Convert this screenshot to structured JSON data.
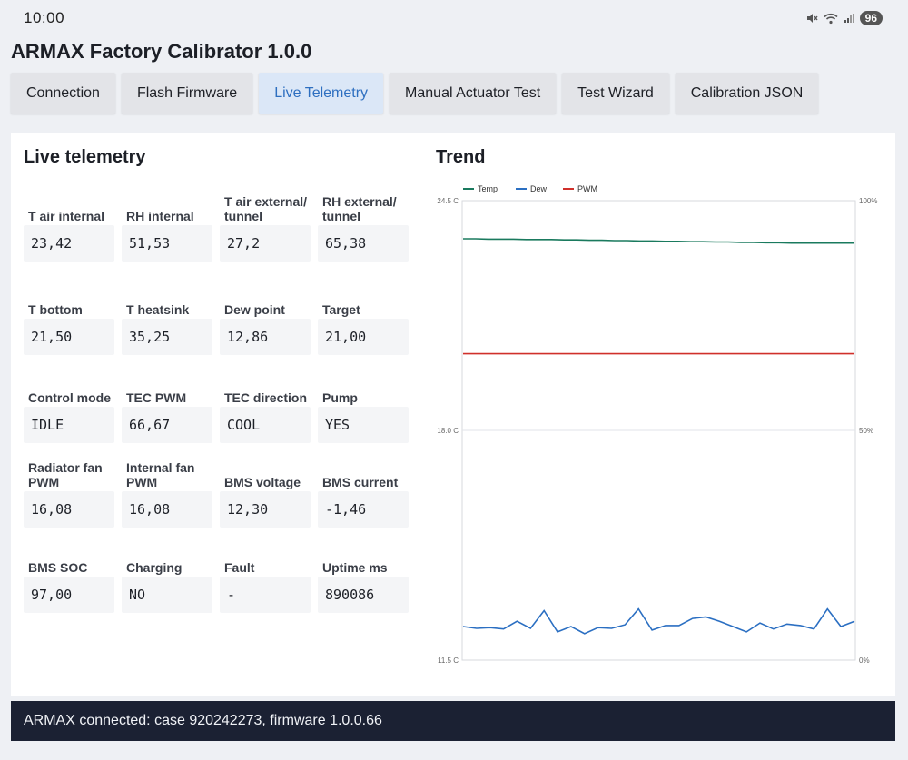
{
  "status_bar": {
    "time": "10:00",
    "battery": "96",
    "icons": [
      "mute-icon",
      "wifi-icon",
      "signal-icon",
      "battery-icon"
    ]
  },
  "app": {
    "title": "ARMAX Factory Calibrator 1.0.0"
  },
  "tabs": [
    {
      "label": "Connection",
      "active": false
    },
    {
      "label": "Flash Firmware",
      "active": false
    },
    {
      "label": "Live Telemetry",
      "active": true
    },
    {
      "label": "Manual Actuator Test",
      "active": false
    },
    {
      "label": "Test Wizard",
      "active": false
    },
    {
      "label": "Calibration JSON",
      "active": false
    }
  ],
  "telemetry": {
    "title": "Live telemetry",
    "rows": [
      [
        {
          "label": "T air internal",
          "value": "23,42"
        },
        {
          "label": "RH internal",
          "value": "51,53"
        },
        {
          "label": "T air external/ tunnel",
          "value": "27,2"
        },
        {
          "label": "RH external/ tunnel",
          "value": "65,38"
        }
      ],
      [
        {
          "label": "T bottom",
          "value": "21,50"
        },
        {
          "label": "T heatsink",
          "value": "35,25"
        },
        {
          "label": "Dew point",
          "value": "12,86"
        },
        {
          "label": "Target",
          "value": "21,00"
        }
      ],
      [
        {
          "label": "Control mode",
          "value": "IDLE"
        },
        {
          "label": "TEC PWM",
          "value": "66,67"
        },
        {
          "label": "TEC direction",
          "value": "COOL"
        },
        {
          "label": "Pump",
          "value": "YES"
        }
      ],
      [
        {
          "label": "Radiator fan PWM",
          "value": "16,08"
        },
        {
          "label": "Internal fan PWM",
          "value": "16,08"
        },
        {
          "label": "BMS voltage",
          "value": "12,30"
        },
        {
          "label": "BMS current",
          "value": "-1,46"
        }
      ],
      [
        {
          "label": "BMS SOC",
          "value": "97,00"
        },
        {
          "label": "Charging",
          "value": "NO"
        },
        {
          "label": "Fault",
          "value": "-"
        },
        {
          "label": "Uptime ms",
          "value": "890086"
        }
      ]
    ]
  },
  "chart_data": {
    "type": "line",
    "title": "Trend",
    "grid": true,
    "legend_placement": "top-left",
    "y_left": {
      "ticks": [
        "24.5 C",
        "18.0 C",
        "11.5 C"
      ],
      "range": [
        11.5,
        24.5
      ]
    },
    "y_right": {
      "ticks": [
        "100%",
        "50%",
        "0%"
      ],
      "range": [
        0,
        100
      ]
    },
    "series": [
      {
        "name": "Temp",
        "color": "#1a7a5e",
        "axis": "left",
        "values": [
          23.42,
          23.42,
          23.41,
          23.41,
          23.41,
          23.4,
          23.4,
          23.4,
          23.39,
          23.39,
          23.38,
          23.38,
          23.37,
          23.37,
          23.36,
          23.36,
          23.35,
          23.35,
          23.34,
          23.34,
          23.33,
          23.33,
          23.32,
          23.32,
          23.31,
          23.31,
          23.3,
          23.3,
          23.3,
          23.3,
          23.3,
          23.3
        ]
      },
      {
        "name": "Dew",
        "color": "#2b6fc2",
        "axis": "left",
        "values": [
          12.45,
          12.4,
          12.42,
          12.38,
          12.6,
          12.4,
          12.9,
          12.3,
          12.45,
          12.25,
          12.42,
          12.4,
          12.5,
          12.95,
          12.35,
          12.48,
          12.48,
          12.68,
          12.72,
          12.6,
          12.45,
          12.3,
          12.55,
          12.38,
          12.52,
          12.48,
          12.38,
          12.95,
          12.45,
          12.6
        ]
      },
      {
        "name": "PWM",
        "color": "#d0302b",
        "axis": "right",
        "values": [
          66.67,
          66.67,
          66.67,
          66.67,
          66.67,
          66.67,
          66.67,
          66.67,
          66.67,
          66.67,
          66.67,
          66.67,
          66.67,
          66.67,
          66.67,
          66.67,
          66.67,
          66.67,
          66.67,
          66.67
        ]
      }
    ]
  },
  "footer": {
    "status": "ARMAX connected: case 920242273, firmware 1.0.0.66"
  }
}
